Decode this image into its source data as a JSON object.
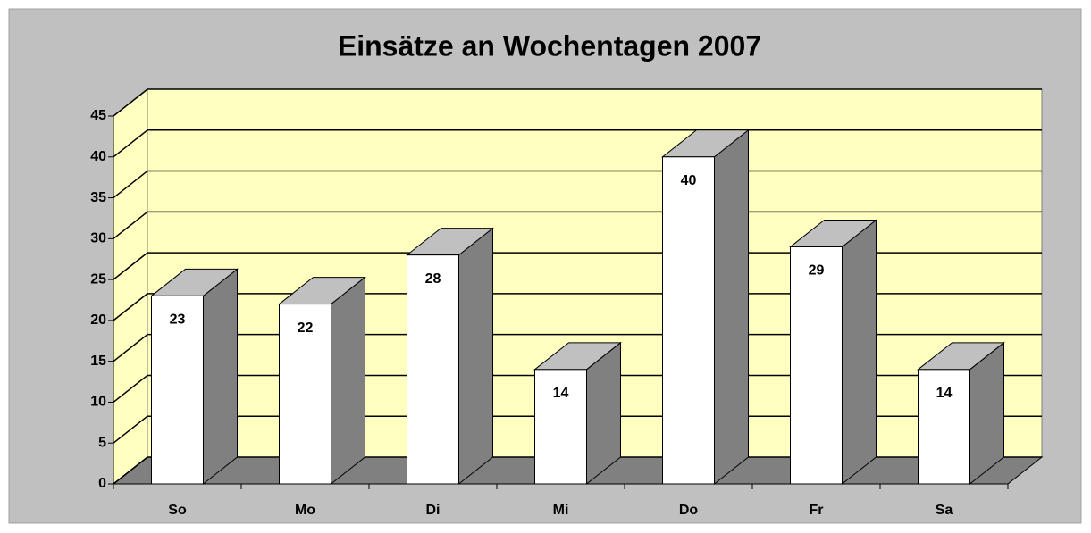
{
  "chart_data": {
    "type": "bar3d",
    "title": "Einsätze an Wochentagen 2007",
    "categories": [
      "So",
      "Mo",
      "Di",
      "Mi",
      "Do",
      "Fr",
      "Sa"
    ],
    "values": [
      23,
      22,
      28,
      14,
      40,
      29,
      14
    ],
    "color": "#ffffff",
    "ylim": [
      0,
      45
    ],
    "yticks": [
      0,
      5,
      10,
      15,
      20,
      25,
      30,
      35,
      40,
      45
    ],
    "grid": true
  }
}
